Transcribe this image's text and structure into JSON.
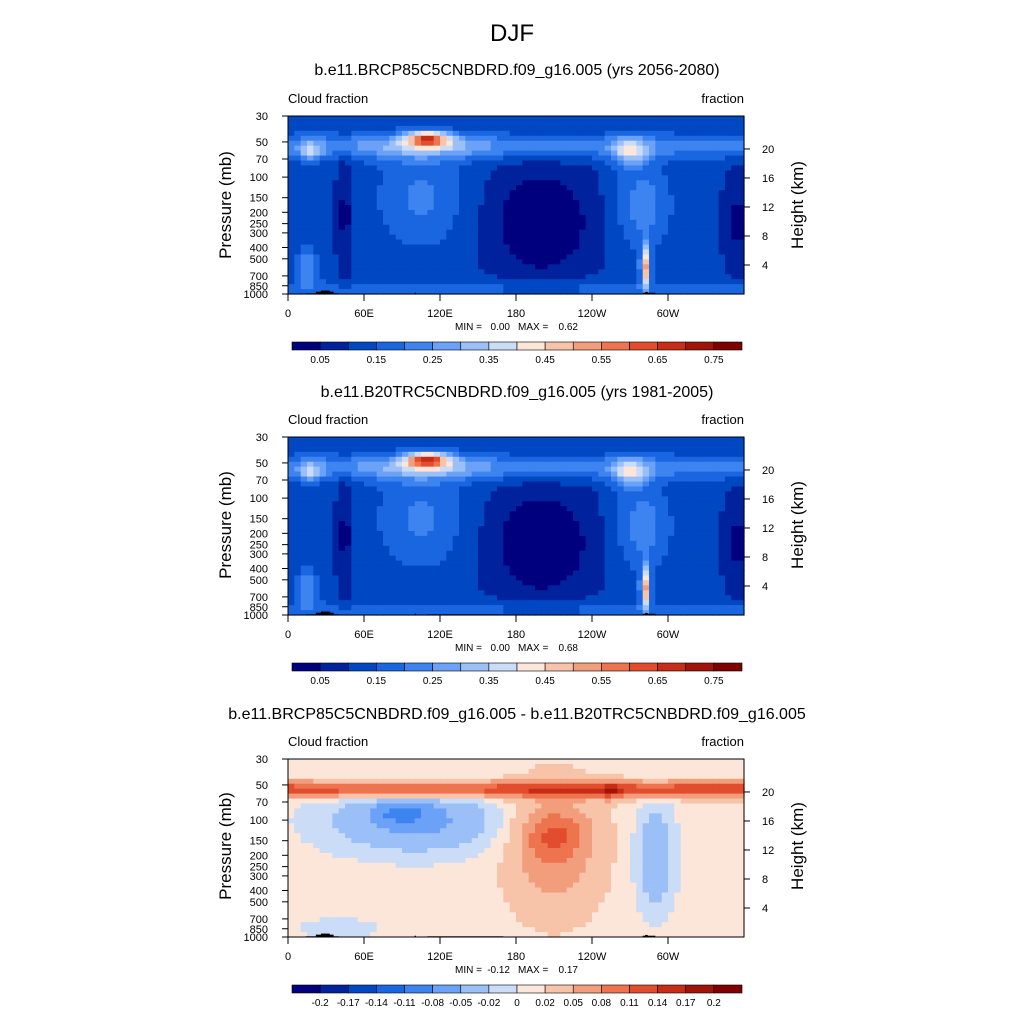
{
  "page_title": "DJF",
  "labels": {
    "left_label": "Cloud fraction",
    "right_label": "fraction",
    "ylabel": "Pressure (mb)",
    "ylabel_right": "Height (km)",
    "min_label": "MIN =",
    "max_label": "MAX ="
  },
  "palette": [
    "#00007f",
    "#00239d",
    "#0047c2",
    "#1966e0",
    "#3d84f0",
    "#6ba2f7",
    "#9bbff7",
    "#cbdcf7",
    "#fbe6d9",
    "#f7c3a9",
    "#f29e7c",
    "#ee7450",
    "#e14d2d",
    "#c62c16",
    "#a0150a",
    "#7f0000"
  ],
  "chart_data": [
    {
      "type": "heatmap",
      "title": "b.e11.BRCP85C5CNBDRD.f09_g16.005 (yrs 2056-2080)",
      "x_ticks": [
        "0",
        "60E",
        "120E",
        "180",
        "120W",
        "60W"
      ],
      "x_tick_values": [
        0,
        60,
        120,
        180,
        240,
        300
      ],
      "xlim": [
        0,
        360
      ],
      "y_ticks": [
        30,
        50,
        70,
        100,
        150,
        200,
        250,
        300,
        400,
        500,
        700,
        850,
        1000
      ],
      "y_tick_labels": [
        "30",
        "50",
        "70",
        "100",
        "150",
        "200",
        "250",
        "300",
        "400",
        "500",
        "700",
        "850",
        "1000"
      ],
      "ylim": [
        1000,
        30
      ],
      "y_scale": "log",
      "y2_ticks": [
        20,
        16,
        12,
        8,
        4
      ],
      "min": "0.00",
      "max": "0.62",
      "colorbar_labels": [
        "0.05",
        "0.15",
        "0.25",
        "0.35",
        "0.45",
        "0.55",
        "0.65",
        "0.75"
      ],
      "levels": [
        0,
        0.05,
        0.1,
        0.15,
        0.2,
        0.25,
        0.3,
        0.35,
        0.4,
        0.45,
        0.5,
        0.55,
        0.6,
        0.65,
        0.7,
        0.75,
        0.8
      ]
    },
    {
      "type": "heatmap",
      "title": "b.e11.B20TRC5CNBDRD.f09_g16.005 (yrs 1981-2005)",
      "x_ticks": [
        "0",
        "60E",
        "120E",
        "180",
        "120W",
        "60W"
      ],
      "x_tick_values": [
        0,
        60,
        120,
        180,
        240,
        300
      ],
      "xlim": [
        0,
        360
      ],
      "y_ticks": [
        30,
        50,
        70,
        100,
        150,
        200,
        250,
        300,
        400,
        500,
        700,
        850,
        1000
      ],
      "y_tick_labels": [
        "30",
        "50",
        "70",
        "100",
        "150",
        "200",
        "250",
        "300",
        "400",
        "500",
        "700",
        "850",
        "1000"
      ],
      "ylim": [
        1000,
        30
      ],
      "y_scale": "log",
      "y2_ticks": [
        20,
        16,
        12,
        8,
        4
      ],
      "min": "0.00",
      "max": "0.68",
      "colorbar_labels": [
        "0.05",
        "0.15",
        "0.25",
        "0.35",
        "0.45",
        "0.55",
        "0.65",
        "0.75"
      ],
      "levels": [
        0,
        0.05,
        0.1,
        0.15,
        0.2,
        0.25,
        0.3,
        0.35,
        0.4,
        0.45,
        0.5,
        0.55,
        0.6,
        0.65,
        0.7,
        0.75,
        0.8
      ]
    },
    {
      "type": "heatmap",
      "title": "b.e11.BRCP85C5CNBDRD.f09_g16.005 - b.e11.B20TRC5CNBDRD.f09_g16.005",
      "x_ticks": [
        "0",
        "60E",
        "120E",
        "180",
        "120W",
        "60W"
      ],
      "x_tick_values": [
        0,
        60,
        120,
        180,
        240,
        300
      ],
      "xlim": [
        0,
        360
      ],
      "y_ticks": [
        30,
        50,
        70,
        100,
        150,
        200,
        250,
        300,
        400,
        500,
        700,
        850,
        1000
      ],
      "y_tick_labels": [
        "30",
        "50",
        "70",
        "100",
        "150",
        "200",
        "250",
        "300",
        "400",
        "500",
        "700",
        "850",
        "1000"
      ],
      "ylim": [
        1000,
        30
      ],
      "y_scale": "log",
      "y2_ticks": [
        20,
        16,
        12,
        8,
        4
      ],
      "min": "-0.12",
      "max": "0.17",
      "colorbar_labels": [
        "-0.2",
        "-0.17",
        "-0.14",
        "-0.11",
        "-0.08",
        "-0.05",
        "-0.02",
        "0",
        "0.02",
        "0.05",
        "0.08",
        "0.11",
        "0.14",
        "0.17",
        "0.2"
      ],
      "levels": [
        -0.23,
        -0.2,
        -0.17,
        -0.14,
        -0.11,
        -0.08,
        -0.05,
        -0.02,
        0,
        0.02,
        0.05,
        0.08,
        0.11,
        0.14,
        0.17,
        0.2,
        0.23
      ]
    }
  ]
}
